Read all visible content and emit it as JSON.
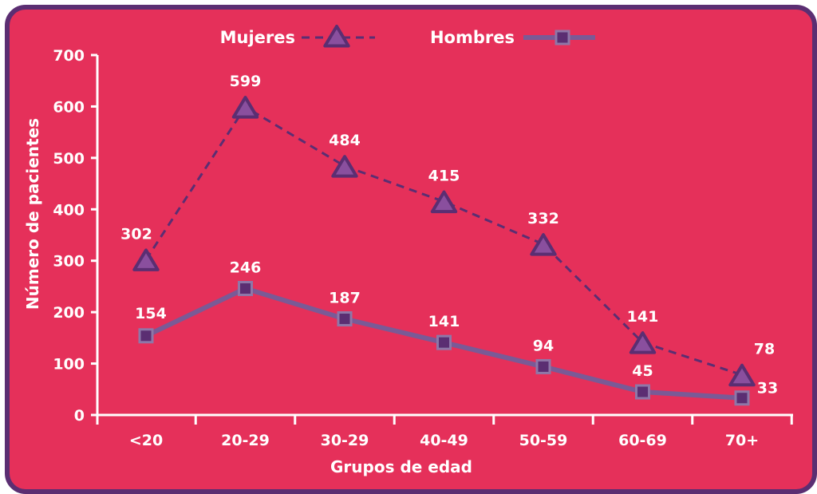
{
  "colors": {
    "background": "#e5305a",
    "border": "#5b2e72",
    "mujeres_line": "#5b2e72",
    "mujeres_marker_fill": "#8a4f9e",
    "hombres_line": "#7a5a96",
    "hombres_marker_fill": "#5b2e72",
    "hombres_marker_border": "#8e77a8",
    "text": "#ffffff"
  },
  "chart_data": {
    "type": "line",
    "xlabel": "Grupos de edad",
    "ylabel": "Número de pacientes",
    "categories": [
      "<20",
      "20-29",
      "30-29",
      "40-49",
      "50-59",
      "60-69",
      "70+"
    ],
    "ylim": [
      0,
      700
    ],
    "yticks": [
      0,
      100,
      200,
      300,
      400,
      500,
      600,
      700
    ],
    "legend_position": "top-center",
    "grid": false,
    "series": [
      {
        "name": "Mujeres",
        "style": "dashed",
        "marker": "triangle",
        "values": [
          302,
          599,
          484,
          415,
          332,
          141,
          78
        ]
      },
      {
        "name": "Hombres",
        "style": "solid",
        "marker": "square",
        "values": [
          154,
          246,
          187,
          141,
          94,
          45,
          33
        ]
      }
    ]
  }
}
